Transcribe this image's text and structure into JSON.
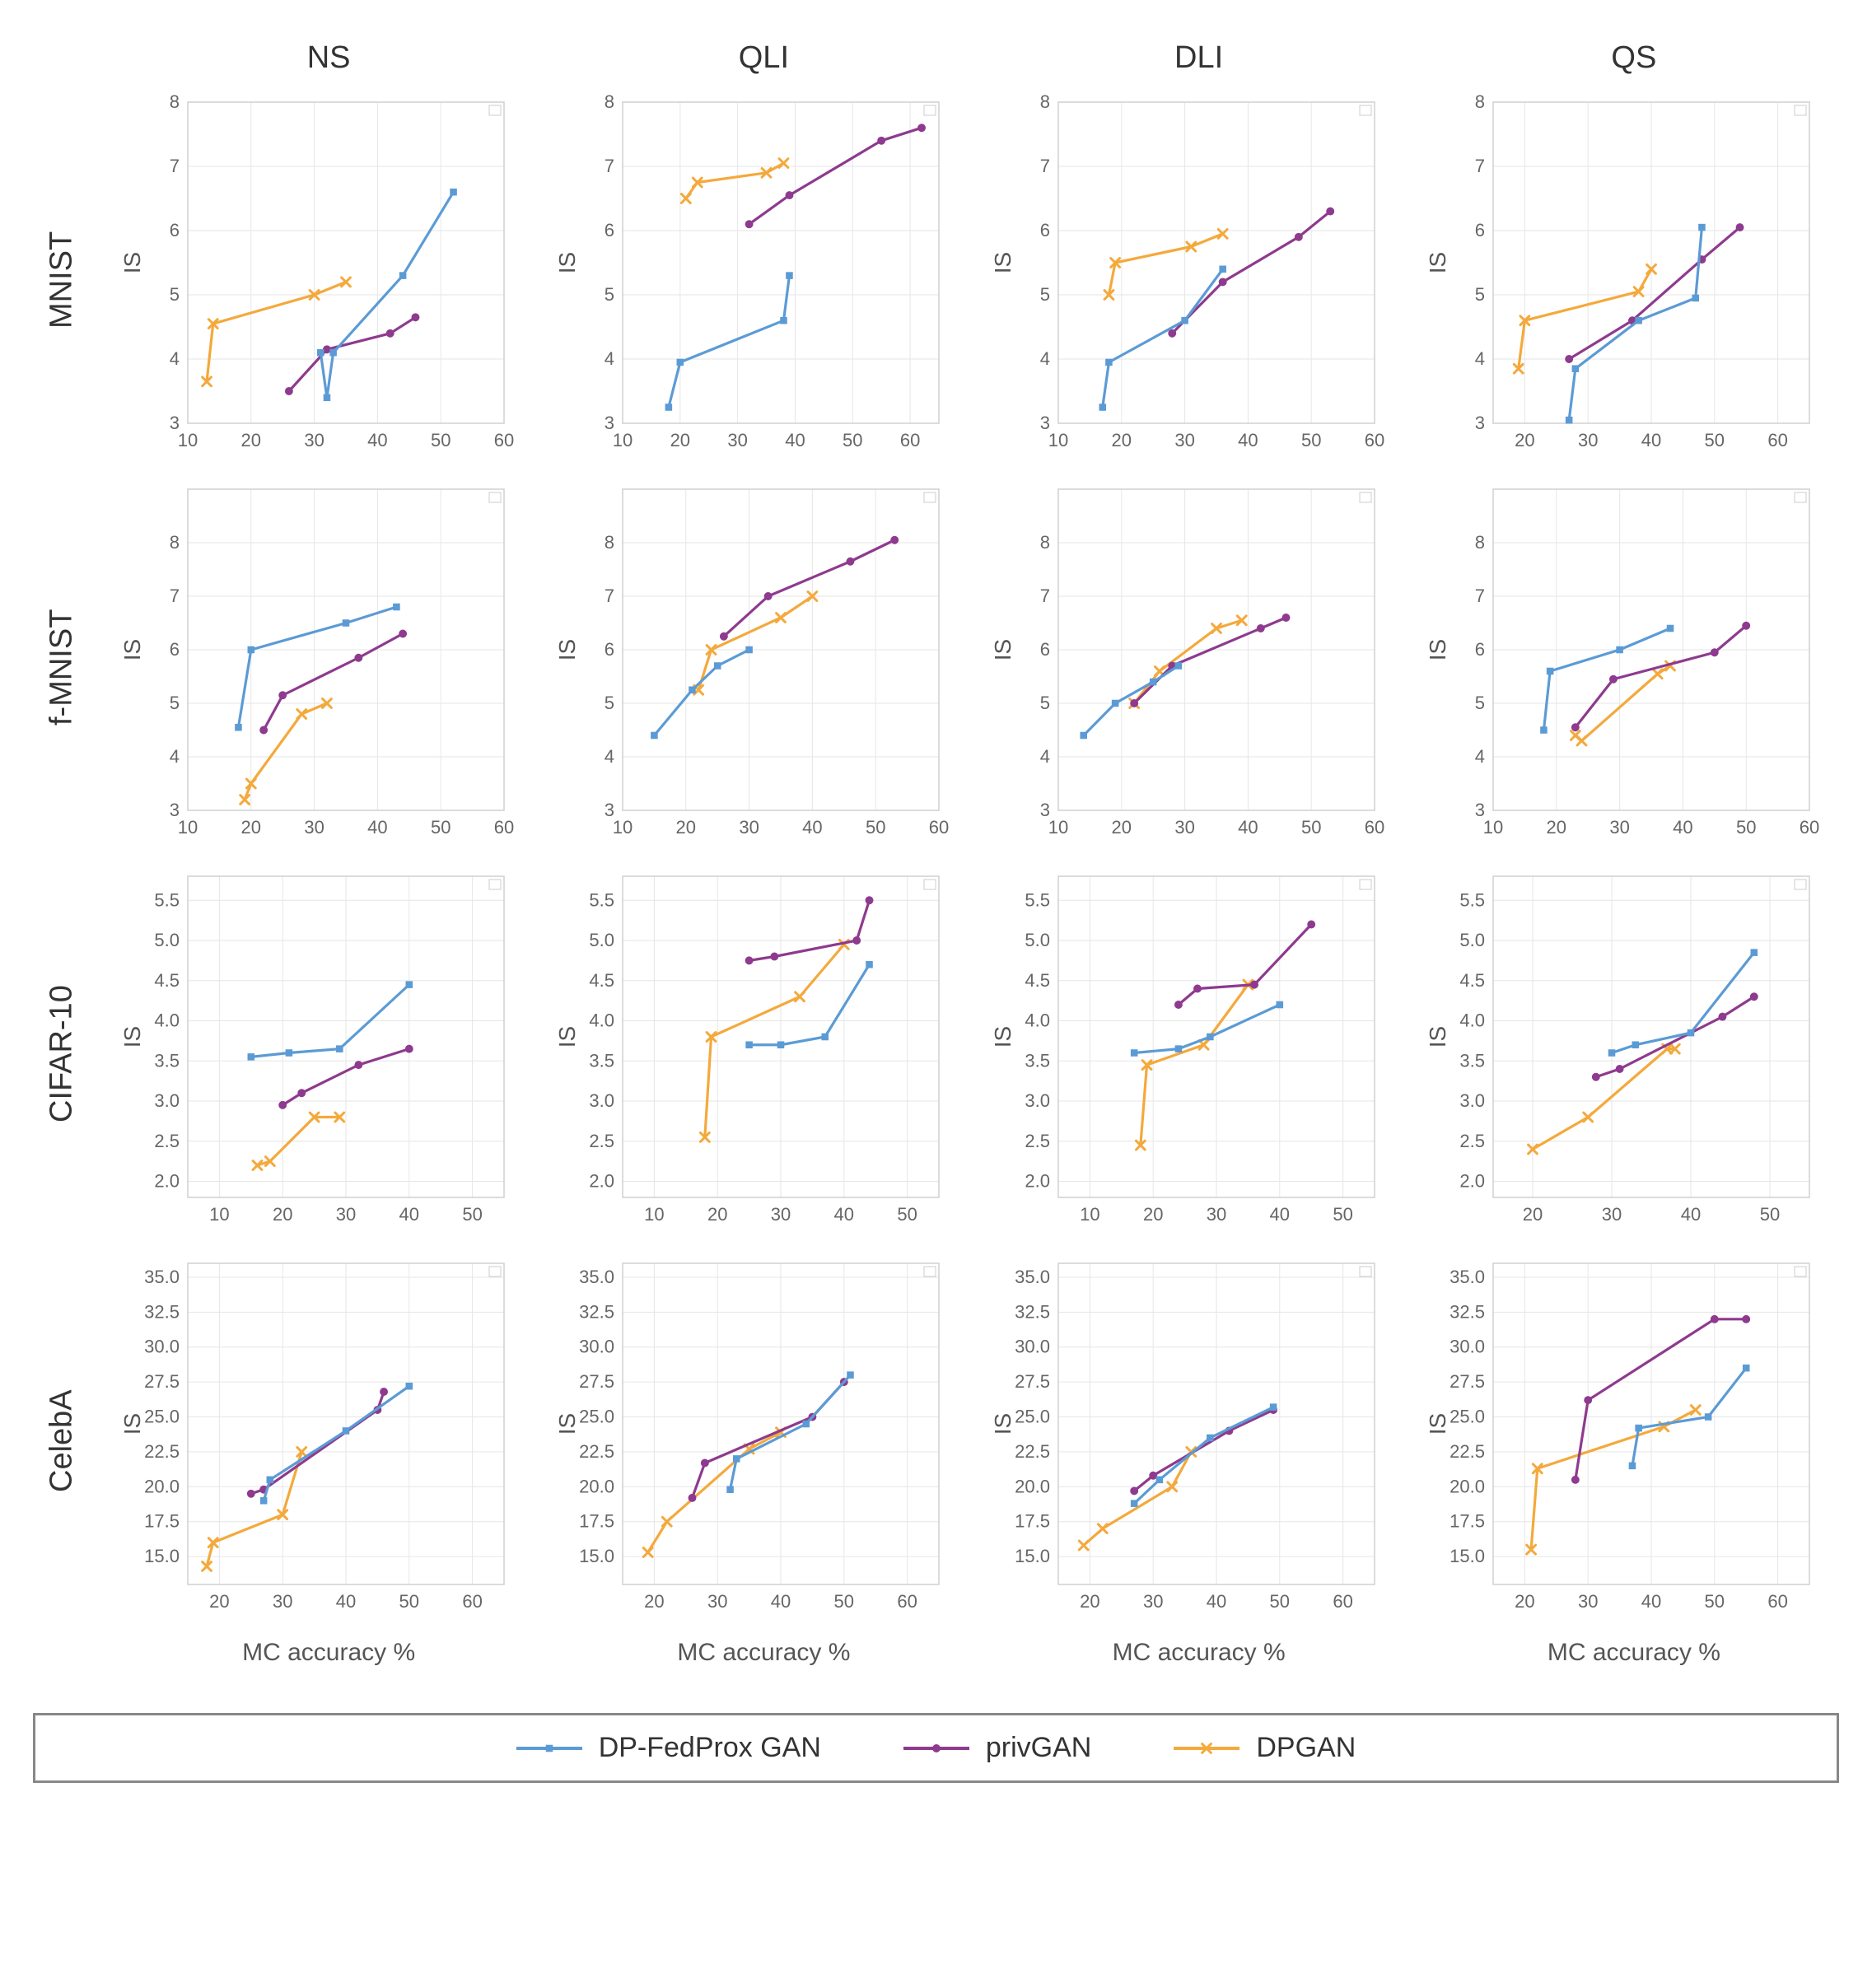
{
  "global": {
    "colors": {
      "dpfedprox": "#5b9bd5",
      "privgan": "#8e3a8e",
      "dpgan": "#f4a93c",
      "grid": "#e6e6e6",
      "axis": "#d0d0d0",
      "tick_text": "#666666",
      "bg": "#ffffff"
    },
    "markers": {
      "dpfedprox": "square",
      "privgan": "circle",
      "dpgan": "cross"
    },
    "line_width": 3.2,
    "marker_size": 9,
    "fontsize_header": 38,
    "fontsize_tick": 22,
    "fontsize_axis_label": 28,
    "legend": {
      "labels": [
        "DP-FedProx GAN",
        "privGAN",
        "DPGAN"
      ],
      "keys": [
        "dpfedprox",
        "privgan",
        "dpgan"
      ]
    },
    "x_axis_title": "MC accuracy %",
    "y_axis_title_default": "IS"
  },
  "columns": [
    "NS",
    "QLI",
    "DLI",
    "QS"
  ],
  "rows": [
    "MNIST",
    "f-MNIST",
    "CIFAR-10",
    "CelebA"
  ],
  "panels": {
    "MNIST_NS": {
      "xlim": [
        10,
        60
      ],
      "xticks": [
        10,
        20,
        30,
        40,
        50,
        60
      ],
      "ylim": [
        3,
        8
      ],
      "yticks": [
        3,
        4,
        5,
        6,
        7,
        8
      ],
      "ylabel": "IS",
      "series": {
        "dpfedprox": {
          "x": [
            31,
            32,
            33,
            44,
            52
          ],
          "y": [
            4.1,
            3.4,
            4.1,
            5.3,
            6.6
          ]
        },
        "privgan": {
          "x": [
            26,
            32,
            42,
            46
          ],
          "y": [
            3.5,
            4.15,
            4.4,
            4.65
          ]
        },
        "dpgan": {
          "x": [
            13,
            14,
            30,
            35
          ],
          "y": [
            3.65,
            4.55,
            5.0,
            5.2
          ]
        }
      }
    },
    "MNIST_QLI": {
      "xlim": [
        10,
        65
      ],
      "xticks": [
        10,
        20,
        30,
        40,
        50,
        60
      ],
      "ylim": [
        3,
        8
      ],
      "yticks": [
        3,
        4,
        5,
        6,
        7,
        8
      ],
      "ylabel": "IS",
      "series": {
        "dpfedprox": {
          "x": [
            18,
            20,
            38,
            39
          ],
          "y": [
            3.25,
            3.95,
            4.6,
            5.3
          ]
        },
        "privgan": {
          "x": [
            32,
            39,
            55,
            62
          ],
          "y": [
            6.1,
            6.55,
            7.4,
            7.6
          ]
        },
        "dpgan": {
          "x": [
            21,
            23,
            35,
            38
          ],
          "y": [
            6.5,
            6.75,
            6.9,
            7.05
          ]
        }
      }
    },
    "MNIST_DLI": {
      "xlim": [
        10,
        60
      ],
      "xticks": [
        10,
        20,
        30,
        40,
        50,
        60
      ],
      "ylim": [
        3,
        8
      ],
      "yticks": [
        3,
        4,
        5,
        6,
        7,
        8
      ],
      "ylabel": "IS",
      "series": {
        "dpfedprox": {
          "x": [
            17,
            18,
            30,
            36
          ],
          "y": [
            3.25,
            3.95,
            4.6,
            5.4
          ]
        },
        "privgan": {
          "x": [
            28,
            36,
            48,
            53
          ],
          "y": [
            4.4,
            5.2,
            5.9,
            6.3
          ]
        },
        "dpgan": {
          "x": [
            18,
            19,
            31,
            36
          ],
          "y": [
            5.0,
            5.5,
            5.75,
            5.95
          ]
        }
      }
    },
    "MNIST_QS": {
      "xlim": [
        15,
        65
      ],
      "xticks": [
        20,
        30,
        40,
        50,
        60
      ],
      "ylim": [
        3,
        8
      ],
      "yticks": [
        3,
        4,
        5,
        6,
        7,
        8
      ],
      "ylabel": "IS",
      "series": {
        "dpfedprox": {
          "x": [
            27,
            28,
            38,
            47,
            48
          ],
          "y": [
            3.05,
            3.85,
            4.6,
            4.95,
            6.05
          ]
        },
        "privgan": {
          "x": [
            27,
            37,
            48,
            54
          ],
          "y": [
            4.0,
            4.6,
            5.55,
            6.05
          ]
        },
        "dpgan": {
          "x": [
            19,
            20,
            38,
            40
          ],
          "y": [
            3.85,
            4.6,
            5.05,
            5.4
          ]
        }
      }
    },
    "f-MNIST_NS": {
      "xlim": [
        10,
        60
      ],
      "xticks": [
        10,
        20,
        30,
        40,
        50,
        60
      ],
      "ylim": [
        3,
        9
      ],
      "yticks": [
        3,
        4,
        5,
        6,
        7,
        8
      ],
      "ylabel": "IS",
      "series": {
        "dpfedprox": {
          "x": [
            18,
            20,
            35,
            43
          ],
          "y": [
            4.55,
            6.0,
            6.5,
            6.8
          ]
        },
        "privgan": {
          "x": [
            22,
            25,
            37,
            44
          ],
          "y": [
            4.5,
            5.15,
            5.85,
            6.3
          ]
        },
        "dpgan": {
          "x": [
            19,
            20,
            28,
            32
          ],
          "y": [
            3.2,
            3.5,
            4.8,
            5.0
          ]
        }
      }
    },
    "f-MNIST_QLI": {
      "xlim": [
        10,
        60
      ],
      "xticks": [
        10,
        20,
        30,
        40,
        50,
        60
      ],
      "ylim": [
        3,
        9
      ],
      "yticks": [
        3,
        4,
        5,
        6,
        7,
        8
      ],
      "ylabel": "IS",
      "series": {
        "dpfedprox": {
          "x": [
            15,
            21,
            25,
            30
          ],
          "y": [
            4.4,
            5.25,
            5.7,
            6.0
          ]
        },
        "privgan": {
          "x": [
            26,
            33,
            46,
            53
          ],
          "y": [
            6.25,
            7.0,
            7.65,
            8.05
          ]
        },
        "dpgan": {
          "x": [
            22,
            24,
            35,
            40
          ],
          "y": [
            5.25,
            6.0,
            6.6,
            7.0
          ]
        }
      }
    },
    "f-MNIST_DLI": {
      "xlim": [
        10,
        60
      ],
      "xticks": [
        10,
        20,
        30,
        40,
        50,
        60
      ],
      "ylim": [
        3,
        9
      ],
      "yticks": [
        3,
        4,
        5,
        6,
        7,
        8
      ],
      "ylabel": "IS",
      "series": {
        "dpfedprox": {
          "x": [
            14,
            19,
            25,
            29
          ],
          "y": [
            4.4,
            5.0,
            5.4,
            5.7
          ]
        },
        "privgan": {
          "x": [
            22,
            28,
            42,
            46
          ],
          "y": [
            5.0,
            5.7,
            6.4,
            6.6
          ]
        },
        "dpgan": {
          "x": [
            22,
            26,
            35,
            39
          ],
          "y": [
            5.0,
            5.6,
            6.4,
            6.55
          ]
        }
      }
    },
    "f-MNIST_QS": {
      "xlim": [
        10,
        60
      ],
      "xticks": [
        10,
        20,
        30,
        40,
        50,
        60
      ],
      "ylim": [
        3,
        9
      ],
      "yticks": [
        3,
        4,
        5,
        6,
        7,
        8
      ],
      "ylabel": "IS",
      "series": {
        "dpfedprox": {
          "x": [
            18,
            19,
            30,
            38
          ],
          "y": [
            4.5,
            5.6,
            6.0,
            6.4
          ]
        },
        "privgan": {
          "x": [
            23,
            29,
            45,
            50
          ],
          "y": [
            4.55,
            5.45,
            5.95,
            6.45
          ]
        },
        "dpgan": {
          "x": [
            23,
            24,
            36,
            38
          ],
          "y": [
            4.4,
            4.3,
            5.55,
            5.7
          ]
        }
      }
    },
    "CIFAR-10_NS": {
      "xlim": [
        5,
        55
      ],
      "xticks": [
        10,
        20,
        30,
        40,
        50
      ],
      "ylim": [
        1.8,
        5.8
      ],
      "yticks": [
        2.0,
        2.5,
        3.0,
        3.5,
        4.0,
        4.5,
        5.0,
        5.5
      ],
      "ylabel": "IS",
      "series": {
        "dpfedprox": {
          "x": [
            15,
            21,
            29,
            40
          ],
          "y": [
            3.55,
            3.6,
            3.65,
            4.45
          ]
        },
        "privgan": {
          "x": [
            20,
            23,
            32,
            40
          ],
          "y": [
            2.95,
            3.1,
            3.45,
            3.65
          ]
        },
        "dpgan": {
          "x": [
            16,
            18,
            25,
            29
          ],
          "y": [
            2.2,
            2.25,
            2.8,
            2.8
          ]
        }
      }
    },
    "CIFAR-10_QLI": {
      "xlim": [
        5,
        55
      ],
      "xticks": [
        10,
        20,
        30,
        40,
        50
      ],
      "ylim": [
        1.8,
        5.8
      ],
      "yticks": [
        2.0,
        2.5,
        3.0,
        3.5,
        4.0,
        4.5,
        5.0,
        5.5
      ],
      "ylabel": "IS",
      "series": {
        "dpfedprox": {
          "x": [
            25,
            30,
            37,
            44
          ],
          "y": [
            3.7,
            3.7,
            3.8,
            4.7
          ]
        },
        "privgan": {
          "x": [
            25,
            29,
            42,
            44
          ],
          "y": [
            4.75,
            4.8,
            5.0,
            5.5
          ]
        },
        "dpgan": {
          "x": [
            18,
            19,
            33,
            40
          ],
          "y": [
            2.55,
            3.8,
            4.3,
            4.95
          ]
        }
      }
    },
    "CIFAR-10_DLI": {
      "xlim": [
        5,
        55
      ],
      "xticks": [
        10,
        20,
        30,
        40,
        50
      ],
      "ylim": [
        1.8,
        5.8
      ],
      "yticks": [
        2.0,
        2.5,
        3.0,
        3.5,
        4.0,
        4.5,
        5.0,
        5.5
      ],
      "ylabel": "IS",
      "series": {
        "dpfedprox": {
          "x": [
            17,
            24,
            29,
            40
          ],
          "y": [
            3.6,
            3.65,
            3.8,
            4.2
          ]
        },
        "privgan": {
          "x": [
            24,
            27,
            36,
            45
          ],
          "y": [
            4.2,
            4.4,
            4.45,
            5.2
          ]
        },
        "dpgan": {
          "x": [
            18,
            19,
            28,
            35
          ],
          "y": [
            2.45,
            3.45,
            3.7,
            4.45
          ]
        }
      }
    },
    "CIFAR-10_QS": {
      "xlim": [
        15,
        55
      ],
      "xticks": [
        20,
        30,
        40,
        50
      ],
      "ylim": [
        1.8,
        5.8
      ],
      "yticks": [
        2.0,
        2.5,
        3.0,
        3.5,
        4.0,
        4.5,
        5.0,
        5.5
      ],
      "ylabel": "IS",
      "series": {
        "dpfedprox": {
          "x": [
            30,
            33,
            40,
            48
          ],
          "y": [
            3.6,
            3.7,
            3.85,
            4.85
          ]
        },
        "privgan": {
          "x": [
            28,
            31,
            44,
            48
          ],
          "y": [
            3.3,
            3.4,
            4.05,
            4.3
          ]
        },
        "dpgan": {
          "x": [
            20,
            27,
            37,
            38
          ],
          "y": [
            2.4,
            2.8,
            3.65,
            3.65
          ]
        }
      }
    },
    "CelebA_NS": {
      "xlim": [
        15,
        65
      ],
      "xticks": [
        20,
        30,
        40,
        50,
        60
      ],
      "ylim": [
        13,
        36
      ],
      "yticks": [
        15.0,
        17.5,
        20.0,
        22.5,
        25.0,
        27.5,
        30.0,
        32.5,
        35.0
      ],
      "ylabel": "IS",
      "series": {
        "dpfedprox": {
          "x": [
            27,
            28,
            40,
            50
          ],
          "y": [
            19.0,
            20.5,
            24.0,
            27.2
          ]
        },
        "privgan": {
          "x": [
            25,
            27,
            45,
            46
          ],
          "y": [
            19.5,
            19.8,
            25.5,
            26.8
          ]
        },
        "dpgan": {
          "x": [
            18,
            19,
            30,
            33
          ],
          "y": [
            14.3,
            16.0,
            18.0,
            22.5
          ]
        }
      }
    },
    "CelebA_QLI": {
      "xlim": [
        15,
        65
      ],
      "xticks": [
        20,
        30,
        40,
        50,
        60
      ],
      "ylim": [
        13,
        36
      ],
      "yticks": [
        15.0,
        17.5,
        20.0,
        22.5,
        25.0,
        27.5,
        30.0,
        32.5,
        35.0
      ],
      "ylabel": "IS",
      "series": {
        "dpfedprox": {
          "x": [
            32,
            33,
            44,
            51
          ],
          "y": [
            19.8,
            22.0,
            24.5,
            28.0
          ]
        },
        "privgan": {
          "x": [
            26,
            28,
            45,
            50
          ],
          "y": [
            19.2,
            21.7,
            25.0,
            27.5
          ]
        },
        "dpgan": {
          "x": [
            19,
            22,
            35,
            40
          ],
          "y": [
            15.3,
            17.5,
            22.7,
            23.9
          ]
        }
      }
    },
    "CelebA_DLI": {
      "xlim": [
        15,
        65
      ],
      "xticks": [
        20,
        30,
        40,
        50,
        60
      ],
      "ylim": [
        13,
        36
      ],
      "yticks": [
        15.0,
        17.5,
        20.0,
        22.5,
        25.0,
        27.5,
        30.0,
        32.5,
        35.0
      ],
      "ylabel": "IS",
      "series": {
        "dpfedprox": {
          "x": [
            27,
            31,
            39,
            49
          ],
          "y": [
            18.8,
            20.5,
            23.5,
            25.7
          ]
        },
        "privgan": {
          "x": [
            27,
            30,
            42,
            49
          ],
          "y": [
            19.7,
            20.8,
            24.0,
            25.5
          ]
        },
        "dpgan": {
          "x": [
            19,
            22,
            33,
            36
          ],
          "y": [
            15.8,
            17.0,
            20.0,
            22.5
          ]
        }
      }
    },
    "CelebA_QS": {
      "xlim": [
        15,
        65
      ],
      "xticks": [
        20,
        30,
        40,
        50,
        60
      ],
      "ylim": [
        13,
        36
      ],
      "yticks": [
        15.0,
        17.5,
        20.0,
        22.5,
        25.0,
        27.5,
        30.0,
        32.5,
        35.0
      ],
      "ylabel": "IS",
      "series": {
        "dpfedprox": {
          "x": [
            37,
            38,
            49,
            55
          ],
          "y": [
            21.5,
            24.2,
            25.0,
            28.5
          ]
        },
        "privgan": {
          "x": [
            28,
            30,
            50,
            55
          ],
          "y": [
            20.5,
            26.2,
            32.0,
            32.0
          ]
        },
        "dpgan": {
          "x": [
            21,
            22,
            42,
            47
          ],
          "y": [
            15.5,
            21.3,
            24.3,
            25.5
          ]
        }
      }
    }
  }
}
